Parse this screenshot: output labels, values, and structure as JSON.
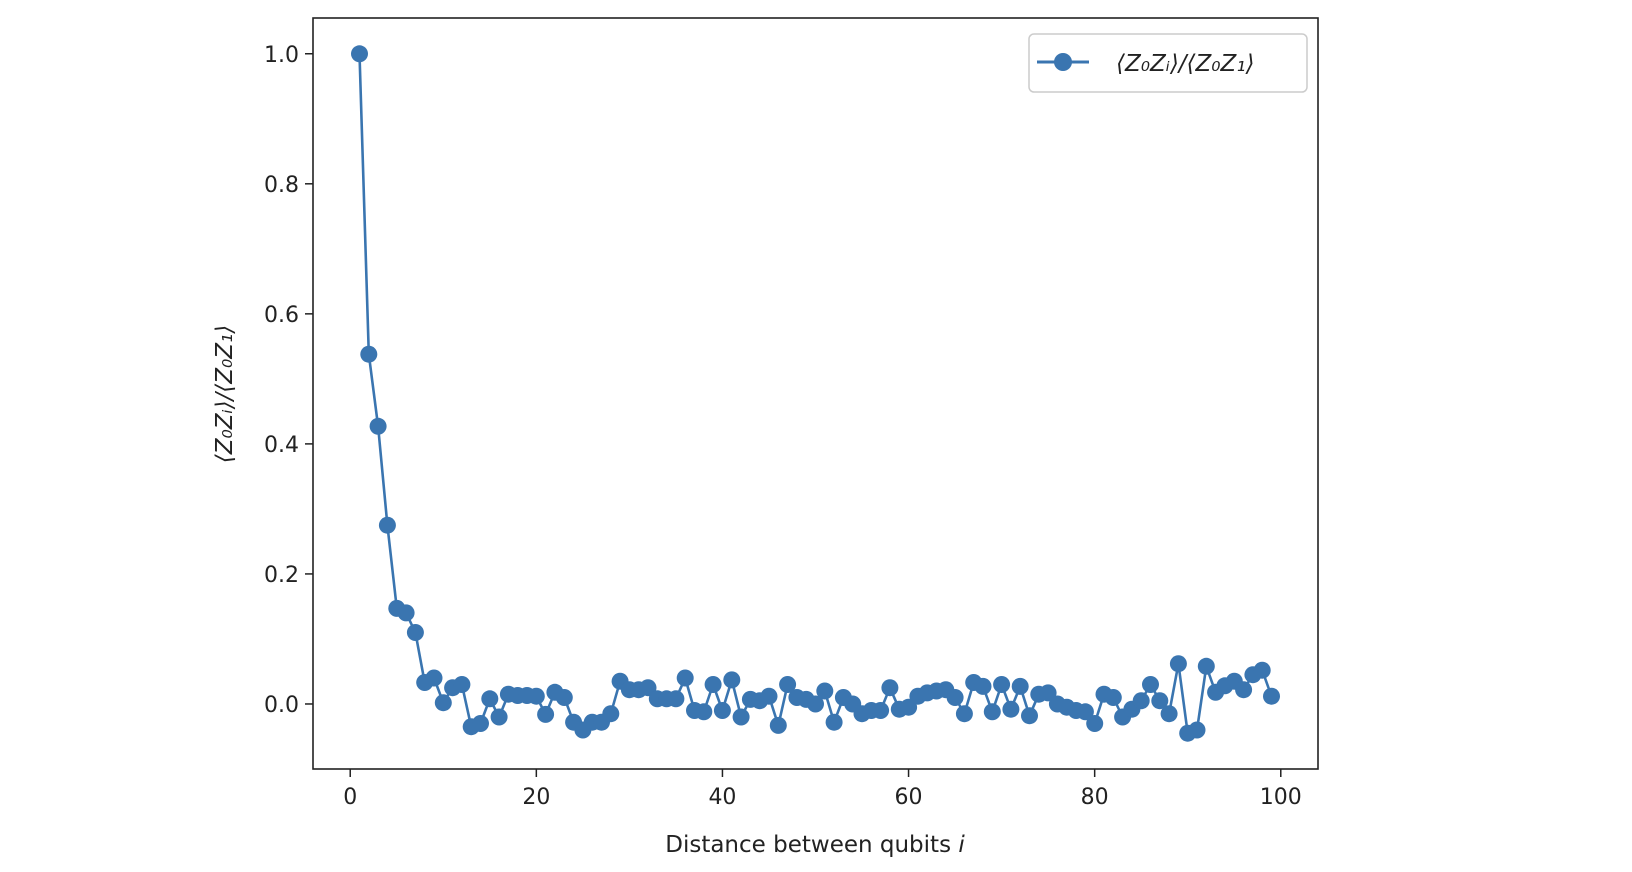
{
  "chart_data": {
    "type": "line",
    "xlabel": "Distance between qubits",
    "xlabel_var": "i",
    "ylabel": "⟨Z₀Zᵢ⟩/⟨Z₀Z₁⟩",
    "xlim": [
      -4,
      104
    ],
    "ylim": [
      -0.1,
      1.055
    ],
    "x_ticks": [
      0,
      20,
      40,
      60,
      80,
      100
    ],
    "y_ticks": [
      0.0,
      0.2,
      0.4,
      0.6,
      0.8,
      1.0
    ],
    "y_tick_labels": [
      "0.0",
      "0.2",
      "0.4",
      "0.6",
      "0.8",
      "1.0"
    ],
    "grid": false,
    "legend_position": "top-right",
    "series": [
      {
        "name": "⟨Z₀Zᵢ⟩/⟨Z₀Z₁⟩",
        "color": "#3a75b0",
        "marker": "circle",
        "x": [
          1,
          2,
          3,
          4,
          5,
          6,
          7,
          8,
          9,
          10,
          11,
          12,
          13,
          14,
          15,
          16,
          17,
          18,
          19,
          20,
          21,
          22,
          23,
          24,
          25,
          26,
          27,
          28,
          29,
          30,
          31,
          32,
          33,
          34,
          35,
          36,
          37,
          38,
          39,
          40,
          41,
          42,
          43,
          44,
          45,
          46,
          47,
          48,
          49,
          50,
          51,
          52,
          53,
          54,
          55,
          56,
          57,
          58,
          59,
          60,
          61,
          62,
          63,
          64,
          65,
          66,
          67,
          68,
          69,
          70,
          71,
          72,
          73,
          74,
          75,
          76,
          77,
          78,
          79,
          80,
          81,
          82,
          83,
          84,
          85,
          86,
          87,
          88,
          89,
          90,
          91,
          92,
          93,
          94,
          95,
          96,
          97,
          98,
          99
        ],
        "y": [
          1.0,
          0.538,
          0.427,
          0.275,
          0.147,
          0.14,
          0.11,
          0.033,
          0.04,
          0.002,
          0.025,
          0.03,
          -0.035,
          -0.03,
          0.008,
          -0.02,
          0.015,
          0.013,
          0.013,
          0.012,
          -0.016,
          0.018,
          0.01,
          -0.028,
          -0.04,
          -0.028,
          -0.028,
          -0.015,
          0.035,
          0.022,
          0.022,
          0.025,
          0.008,
          0.008,
          0.008,
          0.04,
          -0.01,
          -0.012,
          0.03,
          -0.01,
          0.037,
          -0.02,
          0.007,
          0.005,
          0.012,
          -0.033,
          0.03,
          0.01,
          0.007,
          0.0,
          0.02,
          -0.028,
          0.01,
          0.0,
          -0.015,
          -0.01,
          -0.01,
          0.025,
          -0.008,
          -0.005,
          0.012,
          0.017,
          0.02,
          0.022,
          0.01,
          -0.015,
          0.033,
          0.027,
          -0.012,
          0.03,
          -0.008,
          0.027,
          -0.018,
          0.015,
          0.017,
          0.0,
          -0.005,
          -0.01,
          -0.012,
          -0.03,
          0.015,
          0.01,
          -0.02,
          -0.008,
          0.005,
          0.03,
          0.005,
          -0.015,
          0.062,
          -0.045,
          -0.04,
          0.058,
          0.018,
          0.028,
          0.035,
          0.022,
          0.045,
          0.052,
          0.012
        ]
      }
    ]
  }
}
